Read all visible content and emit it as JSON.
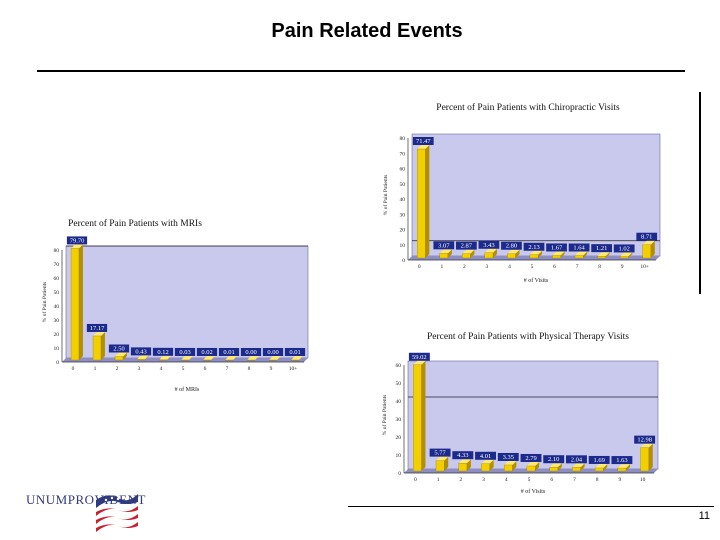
{
  "page": {
    "title": "Pain Related Events",
    "page_number": "11",
    "logo_text": "UNUMPROVIDENT"
  },
  "colors": {
    "plot_bg": "#c9c9ee",
    "bar_front": "#f2d000",
    "bar_side": "#b38f00",
    "bar_top": "#ffe873",
    "label_bg": "#1c2a8c",
    "label_text": "#ffffff"
  },
  "chart_data": [
    {
      "id": "chiro",
      "type": "bar",
      "title": "Percent of Pain Patients with Chiropractic Visits",
      "xlabel": "# of Visits",
      "ylabel": "% of Pain Patients",
      "categories": [
        "0",
        "1",
        "2",
        "3",
        "4",
        "5",
        "6",
        "7",
        "8",
        "9",
        "10+"
      ],
      "values": [
        71.47,
        3.07,
        2.87,
        3.43,
        2.8,
        2.13,
        1.67,
        1.64,
        1.21,
        1.02,
        8.71
      ],
      "value_labels": [
        "71.47",
        "3.07",
        "2.87",
        "3.43",
        "2.80",
        "2.13",
        "1.67",
        "1.64",
        "1.21",
        "1.02",
        "8.71"
      ],
      "yticks": [
        "0",
        "10",
        "20",
        "30",
        "40",
        "50",
        "60",
        "70",
        "80"
      ],
      "ylim": [
        0,
        80
      ],
      "ref_line": 10,
      "grid": false
    },
    {
      "id": "mri",
      "type": "bar",
      "title": "Percent of Pain Patients with MRIs",
      "xlabel": "# of MRIs",
      "ylabel": "% of Pain Patients",
      "categories": [
        "0",
        "1",
        "2",
        "3",
        "4",
        "5",
        "6",
        "7",
        "8",
        "9",
        "10+"
      ],
      "values": [
        79.7,
        17.17,
        2.5,
        0.43,
        0.12,
        0.03,
        0.02,
        0.01,
        0.0,
        0.0,
        0.01
      ],
      "value_labels": [
        "79.70",
        "17.17",
        "2.50",
        "0.43",
        "0.12",
        "0.03",
        "0.02",
        "0.01",
        "0.00",
        "0.00",
        "0.01"
      ],
      "yticks": [
        "0",
        "10",
        "20",
        "30",
        "40",
        "50",
        "60",
        "70",
        "80"
      ],
      "ylim": [
        0,
        80
      ],
      "ref_line": 80,
      "grid": false
    },
    {
      "id": "pt",
      "type": "bar",
      "title": "Percent of Pain Patients with Physical Therapy Visits",
      "xlabel": "# of Visits",
      "ylabel": "% of Pain Patients",
      "categories": [
        "0",
        "1",
        "2",
        "3",
        "4",
        "5",
        "6",
        "7",
        "8",
        "9",
        "10"
      ],
      "values": [
        59.02,
        5.77,
        4.33,
        4.01,
        3.35,
        2.79,
        2.1,
        2.04,
        1.69,
        1.63,
        12.98
      ],
      "value_labels": [
        "59.02",
        "5.77",
        "4.33",
        "4.01",
        "3.35",
        "2.79",
        "2.10",
        "2.04",
        "1.69",
        "1.63",
        "12.98"
      ],
      "yticks": [
        "0",
        "10",
        "20",
        "30",
        "40",
        "50",
        "60"
      ],
      "ylim": [
        0,
        60
      ],
      "ref_line": 40,
      "grid": false
    }
  ]
}
